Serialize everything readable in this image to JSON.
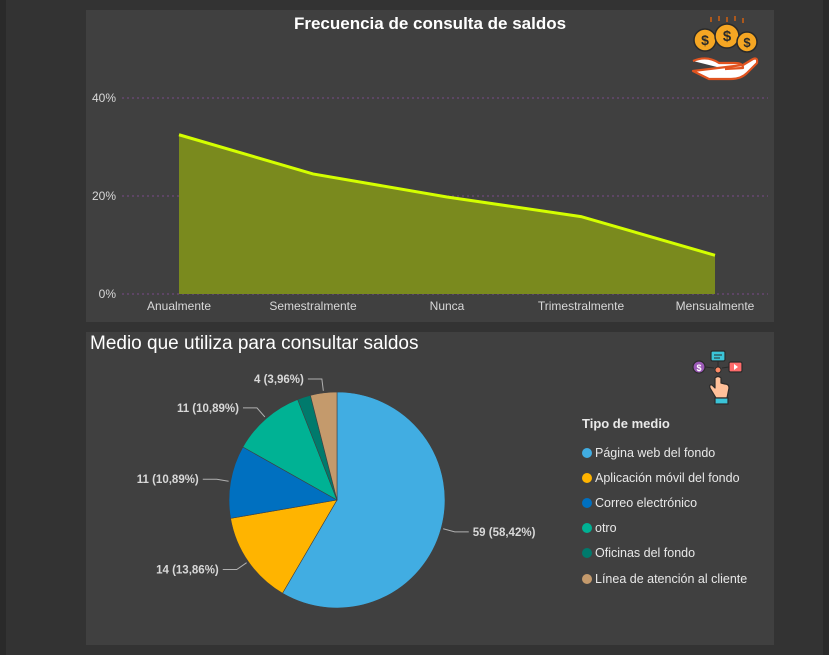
{
  "area_chart": {
    "title": "Frecuencia de consulta de saldos"
  },
  "pie_chart": {
    "title": "Medio que utiliza para consultar saldos",
    "legend_title": "Tipo de medio"
  },
  "colors": {
    "area_fill": "#7a8a1e",
    "area_line": "#d4ff00",
    "grid": "#7a4a8a",
    "panel_bg": "#404040"
  },
  "icons": {
    "area_icon": "hand-coins-icon",
    "pie_icon": "digital-touch-icon"
  },
  "chart_data": [
    {
      "type": "area",
      "title": "Frecuencia de consulta de saldos",
      "categories": [
        "Anualmente",
        "Semestralmente",
        "Nunca",
        "Trimestralmente",
        "Mensualmente"
      ],
      "values": [
        32.5,
        24.5,
        19.8,
        15.8,
        7.9
      ],
      "ylim": [
        0,
        45
      ],
      "yticks": [
        "0%",
        "20%",
        "40%"
      ],
      "ytick_values": [
        0,
        20,
        40
      ],
      "grid": true
    },
    {
      "type": "pie",
      "title": "Medio que utiliza para consultar saldos",
      "legend_title": "Tipo de medio",
      "legend_position": "right",
      "slices": [
        {
          "label": "Página web del fondo",
          "value": 59,
          "data_label": "59 (58,42%)",
          "color": "#41ade2"
        },
        {
          "label": "Aplicación móvil del fondo",
          "value": 14,
          "data_label": "14 (13,86%)",
          "color": "#ffb400"
        },
        {
          "label": "Correo electrónico",
          "value": 11,
          "data_label": "11 (10,89%)",
          "color": "#0070c0"
        },
        {
          "label": "otro",
          "value": 11,
          "data_label": "11 (10,89%)",
          "color": "#00b294"
        },
        {
          "label": "Oficinas del fondo",
          "value": 2,
          "data_label": "",
          "color": "#007a6c"
        },
        {
          "label": "Línea de atención al cliente",
          "value": 4,
          "data_label": "4 (3,96%)",
          "color": "#c49a6c"
        }
      ]
    }
  ]
}
